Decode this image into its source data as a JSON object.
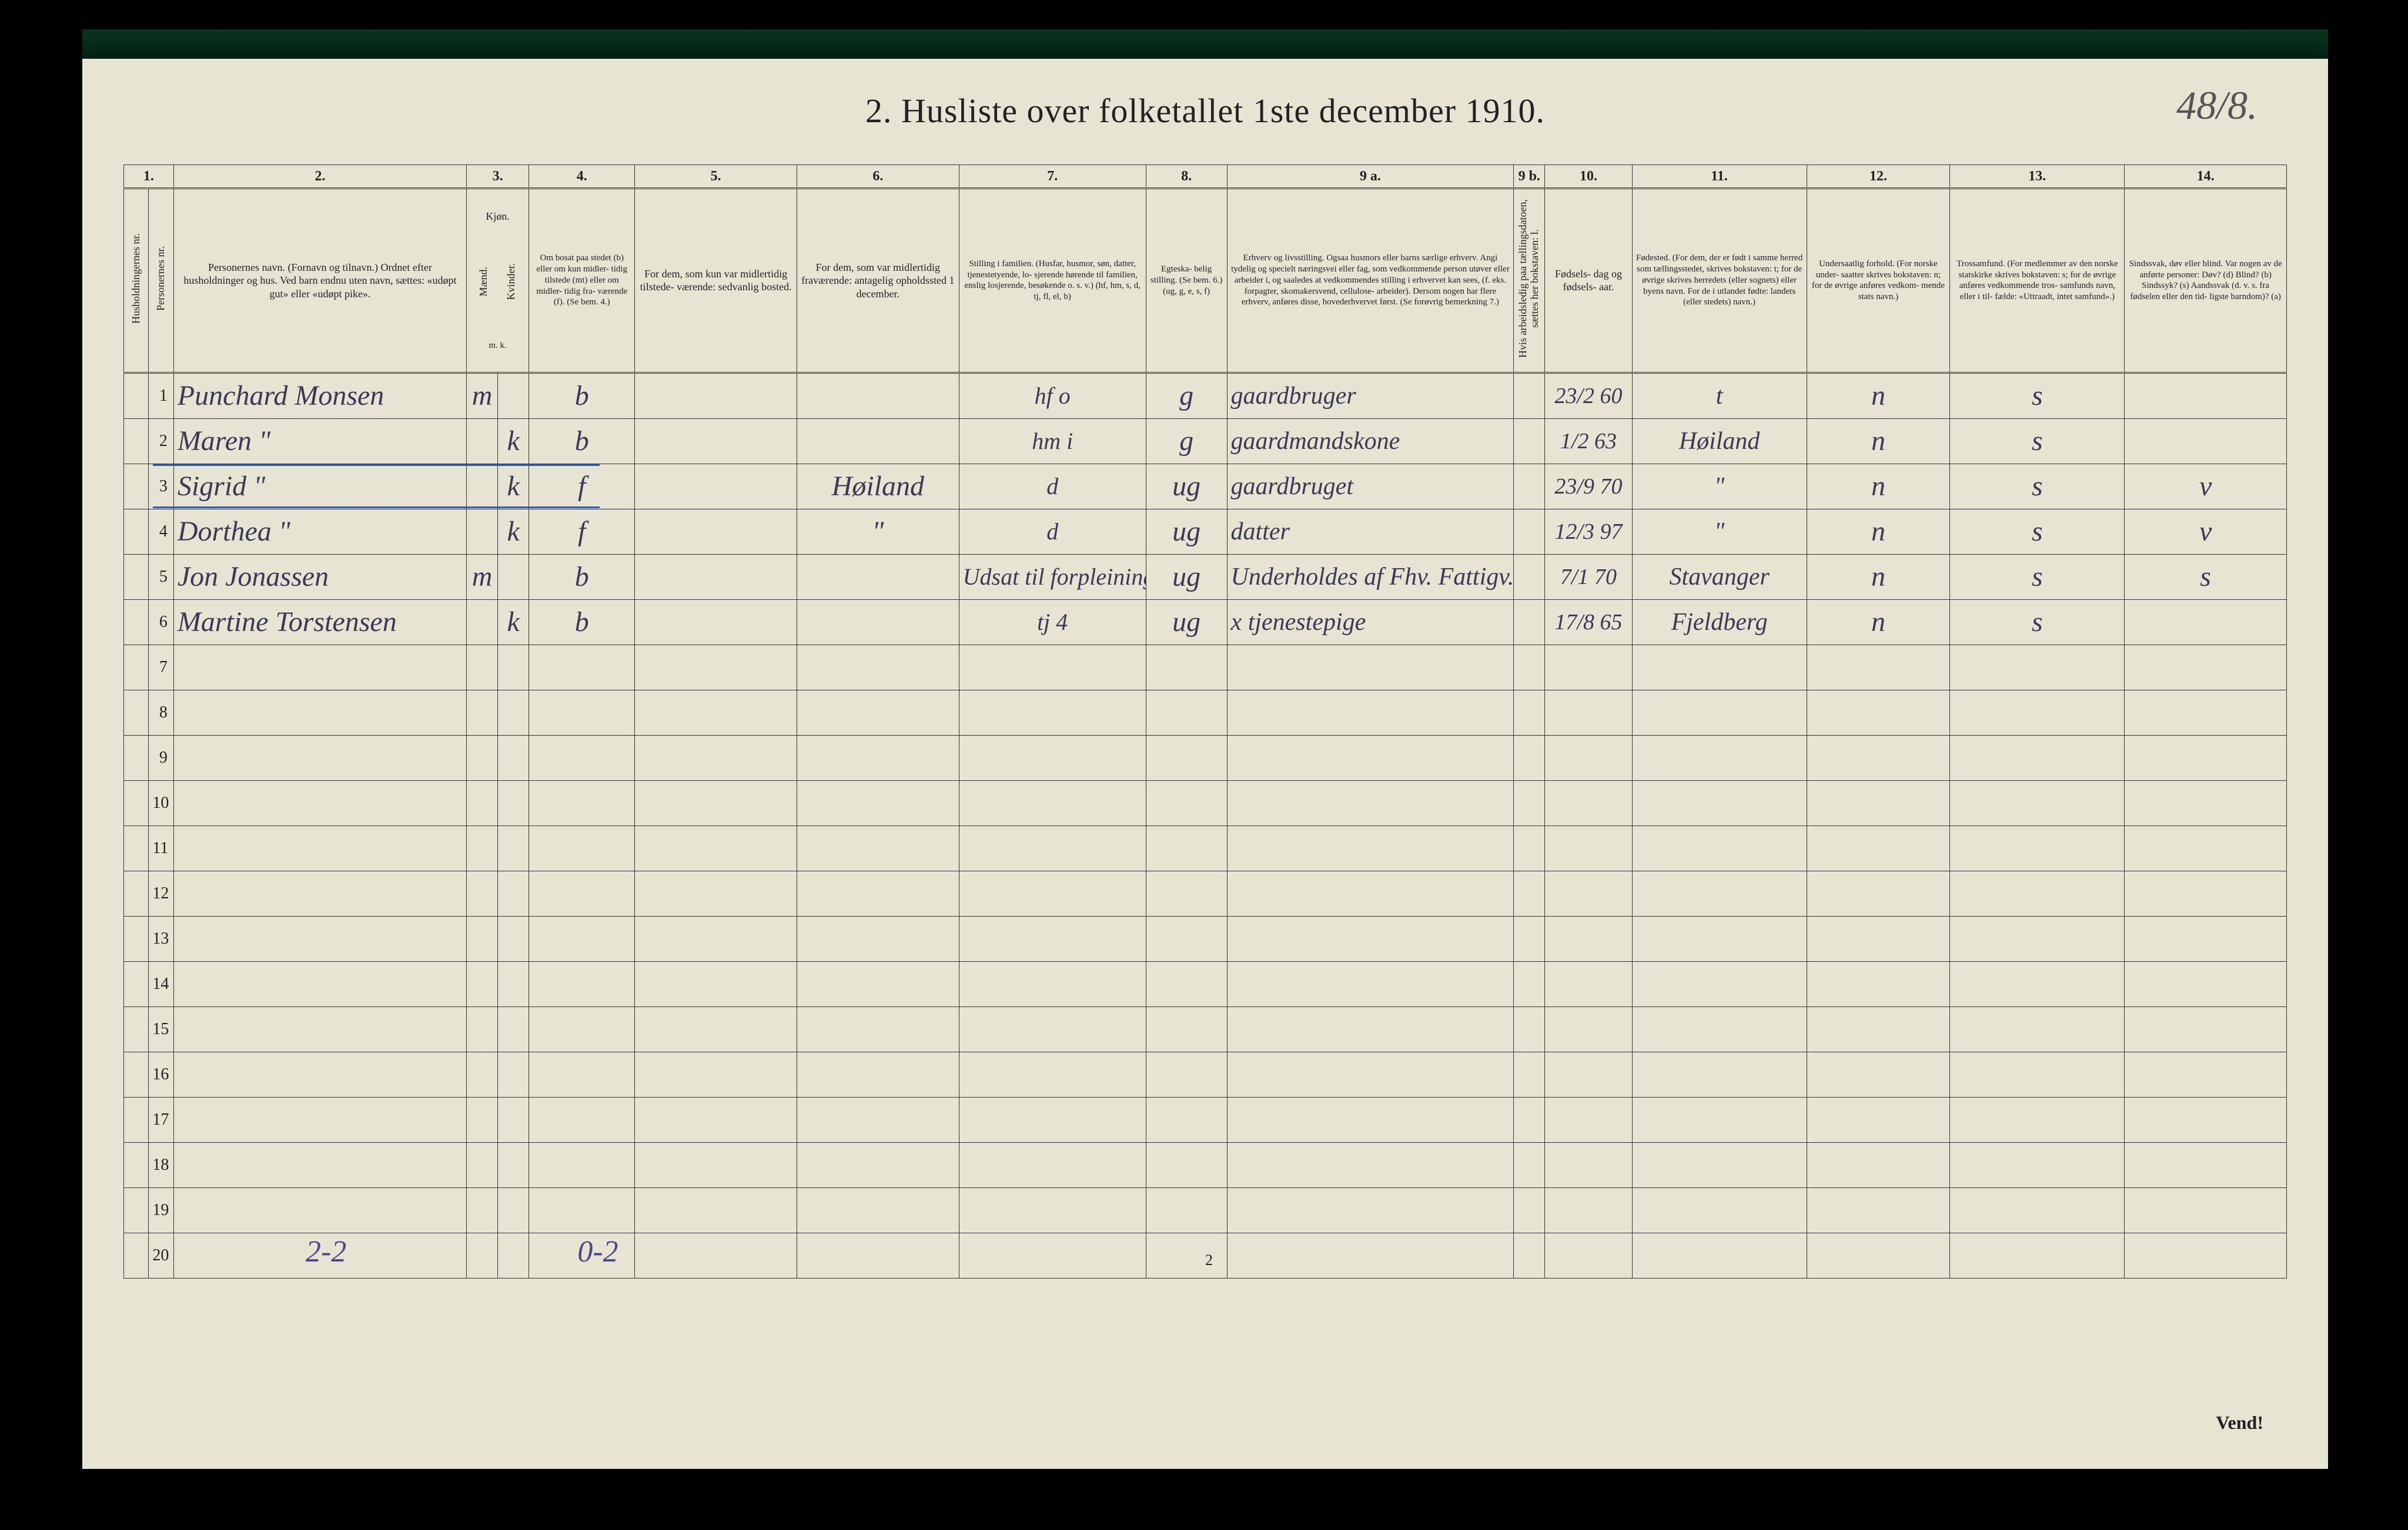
{
  "title": "2.  Husliste over folketallet 1ste december 1910.",
  "page_corner": "48/8.",
  "footnote_left": "2-2",
  "footnote_right": "0-2",
  "page_number_bottom": "2",
  "vend": "Vend!",
  "colors": {
    "page_bg": "#e8e4d4",
    "border": "#333333",
    "ink": "#222222",
    "hand": "#3a3a55",
    "blue_pencil": "#4a4a88",
    "blue_line": "#3a5aa8"
  },
  "columns": {
    "nums": [
      "1.",
      "2.",
      "3.",
      "4.",
      "5.",
      "6.",
      "7.",
      "8.",
      "9 a.",
      "9 b.",
      "10.",
      "11.",
      "12.",
      "13.",
      "14."
    ],
    "h1_rot": "Husholdningernes nr.",
    "h1b_rot": "Personernes nr.",
    "h2": "Personernes navn.\n(Fornavn og tilnavn.)\nOrdnet efter husholdninger og hus.\nVed barn endnu uten navn, sættes: «udøpt gut»\neller «udøpt pike».",
    "h3": "Kjøn.",
    "h3a_rot": "Mænd.",
    "h3b_rot": "Kvinder.",
    "h3sub": "m.  k.",
    "h4": "Om bosat\npaa stedet\n(b) eller om\nkun midler-\ntidig tilstede\n(mt) eller\nom midler-\ntidig fra-\nværende (f).\n(Se bem. 4.)",
    "h5": "For dem, som kun var\nmidlertidig tilstede-\nværende:\nsedvanlig bosted.",
    "h6": "For dem, som var\nmidlertidig\nfraværende:\nantagelig opholdssted\n1 december.",
    "h7": "Stilling i familien.\n(Husfar, husmor, søn,\ndatter, tjenestetyende, lo-\nsjerende hørende til familien,\nenslig losjerende, besøkende\no. s. v.)\n(hf, hm, s, d, tj, fl,\nel, b)",
    "h8": "Egteska-\nbelig\nstilling.\n(Se bem. 6.)\n(ug, g,\ne, s, f)",
    "h9a": "Erhverv og livsstilling.\nOgsaa husmors eller barns særlige erhverv.\nAngi tydelig og specielt næringsvei eller fag, som\nvedkommende person utøver eller arbeider i,\nog saaledes at vedkommendes stilling i erhvervet kan\nsees, (f. eks. forpagter, skomakersvend, cellulose-\narbeider). Dersom nogen har flere erhverv,\nanføres disse, hovederhvervet først.\n(Se forøvrig bemerkning 7.)",
    "h9b_rot": "Hvis arbeidsledig\npaa tællingsdatoen, sættes\nher bokstaven: l.",
    "h10": "Fødsels-\ndag\nog\nfødsels-\naar.",
    "h11": "Fødested.\n(For dem, der er født\ni samme herred som\ntællingsstedet,\nskrives bokstaven: t;\nfor de øvrige skrives\nherredets (eller sognets)\neller byens navn.\nFor de i utlandet fødte:\nlandets (eller stedets)\nnavn.)",
    "h12": "Undersaatlig\nforhold.\n(For norske under-\nsaatter skrives\nbokstaven: n;\nfor de øvrige\nanføres vedkom-\nmende stats navn.)",
    "h13": "Trossamfund.\n(For medlemmer av\nden norske statskirke\nskrives bokstaven: s;\nfor de øvrige anføres\nvedkommende tros-\nsamfunds navn, eller i til-\nfælde: «Uttraadt, intet\nsamfund».)",
    "h14": "Sindssvak, døv\neller blind.\nVar nogen av de anførte\npersoner:\nDøv?        (d)\nBlind?      (b)\nSindssyk?  (s)\nAandssvak (d. v. s. fra\nfødselen eller den tid-\nligste barndom)? (a)"
  },
  "rows": [
    {
      "n": "1",
      "name": "Punchard Monsen",
      "sex_m": "m",
      "sex_k": "",
      "bosat": "b",
      "c5": "",
      "c6": "",
      "c7": "hf    o",
      "c8": "g",
      "c9a": "gaardbruger",
      "c9b": "",
      "c10": "23/2 60",
      "c11": "t",
      "c12": "n",
      "c13": "s",
      "c14": ""
    },
    {
      "n": "2",
      "name": "Maren       \"",
      "sex_m": "",
      "sex_k": "k",
      "bosat": "b",
      "c5": "",
      "c6": "",
      "c7": "hm    i",
      "c8": "g",
      "c9a": "gaardmandskone",
      "c9b": "",
      "c10": "1/2 63",
      "c11": "Høiland",
      "c12": "n",
      "c13": "s",
      "c14": ""
    },
    {
      "n": "3",
      "name": "Sigrid      \"",
      "sex_m": "",
      "sex_k": "k",
      "bosat": "f",
      "c5": "",
      "c6": "Høiland",
      "c7": "d",
      "c8": "ug",
      "c9a": "gaardbruget",
      "c9b": "",
      "c10": "23/9 70",
      "c11": "\"",
      "c12": "n",
      "c13": "s",
      "c14": "v"
    },
    {
      "n": "4",
      "name": "Dorthea    \"",
      "sex_m": "",
      "sex_k": "k",
      "bosat": "f",
      "c5": "",
      "c6": "\"",
      "c7": "d",
      "c8": "ug",
      "c9a": "datter",
      "c9b": "",
      "c10": "12/3 97",
      "c11": "\"",
      "c12": "n",
      "c13": "s",
      "c14": "v"
    },
    {
      "n": "5",
      "name": "Jon Jonassen",
      "sex_m": "m",
      "sex_k": "",
      "bosat": "b",
      "c5": "",
      "c6": "",
      "c7": "Udsat til forpleining",
      "c8": "ug",
      "c9a": "Underholdes af Fhv. Fattigv.",
      "c9b": "",
      "c10": "7/1 70",
      "c11": "Stavanger",
      "c12": "n",
      "c13": "s",
      "c14": "s"
    },
    {
      "n": "6",
      "name": "Martine Torstensen",
      "sex_m": "",
      "sex_k": "k",
      "bosat": "b",
      "c5": "",
      "c6": "",
      "c7": "tj    4",
      "c8": "ug",
      "c9a": "x  tjenestepige",
      "c9b": "",
      "c10": "17/8 65",
      "c11": "Fjeldberg",
      "c12": "n",
      "c13": "s",
      "c14": ""
    }
  ],
  "empty_rows": [
    "7",
    "8",
    "9",
    "10",
    "11",
    "12",
    "13",
    "14",
    "15",
    "16",
    "17",
    "18",
    "19",
    "20"
  ]
}
